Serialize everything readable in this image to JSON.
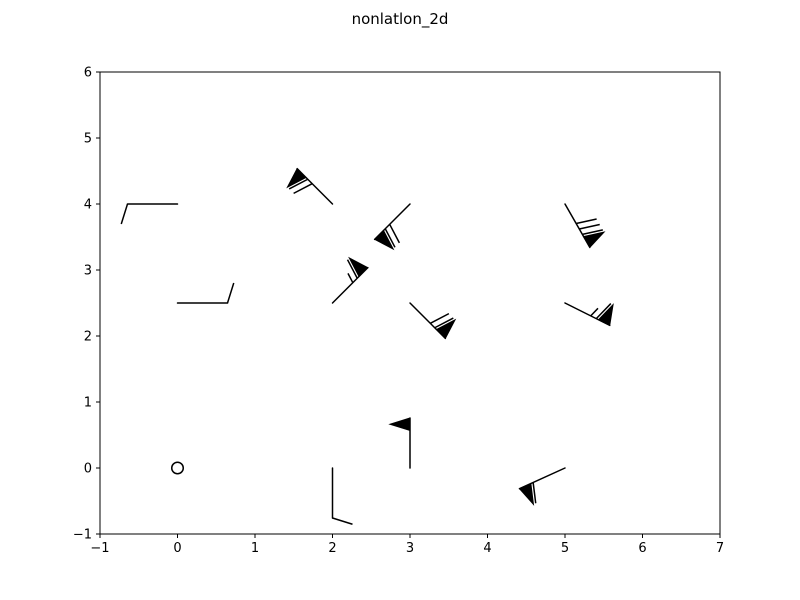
{
  "chart_data": {
    "type": "scatter",
    "title": "nonlatlon_2d",
    "xlabel": "",
    "ylabel": "",
    "xlim": [
      -1,
      7
    ],
    "ylim": [
      -1,
      6
    ],
    "xticks": [
      -1,
      0,
      1,
      2,
      3,
      4,
      5,
      6,
      7
    ],
    "yticks": [
      -1,
      0,
      1,
      2,
      3,
      4,
      5,
      6
    ],
    "xtick_labels": [
      "−1",
      "0",
      "1",
      "2",
      "3",
      "4",
      "5",
      "6",
      "7"
    ],
    "ytick_labels": [
      "−1",
      "0",
      "1",
      "2",
      "3",
      "4",
      "5",
      "6"
    ],
    "grid": false,
    "marker": "wind barbs",
    "color": "#000000",
    "points": [
      {
        "x": 0,
        "y": 0,
        "u": 0,
        "v": 0,
        "speed": 0
      },
      {
        "x": 2,
        "y": 0,
        "u": 0,
        "v": 10,
        "speed": 10
      },
      {
        "x": 3,
        "y": 0,
        "u": 0,
        "v": -50,
        "speed": 50
      },
      {
        "x": 5,
        "y": 0,
        "u": 55,
        "v": 25,
        "speed": 60
      },
      {
        "x": 0,
        "y": 2.5,
        "u": -10,
        "v": 0,
        "speed": 10
      },
      {
        "x": 2,
        "y": 2.5,
        "u": -45,
        "v": -45,
        "speed": 64
      },
      {
        "x": 3,
        "y": 2.5,
        "u": -50,
        "v": 50,
        "speed": 71
      },
      {
        "x": 5,
        "y": 2.5,
        "u": -60,
        "v": 30,
        "speed": 67
      },
      {
        "x": 0,
        "y": 4,
        "u": 10,
        "v": 0,
        "speed": 10
      },
      {
        "x": 2,
        "y": 4,
        "u": 50,
        "v": -50,
        "speed": 71
      },
      {
        "x": 3,
        "y": 4,
        "u": 50,
        "v": 50,
        "speed": 71
      },
      {
        "x": 5,
        "y": 4,
        "u": -40,
        "v": 70,
        "speed": 81
      }
    ]
  }
}
